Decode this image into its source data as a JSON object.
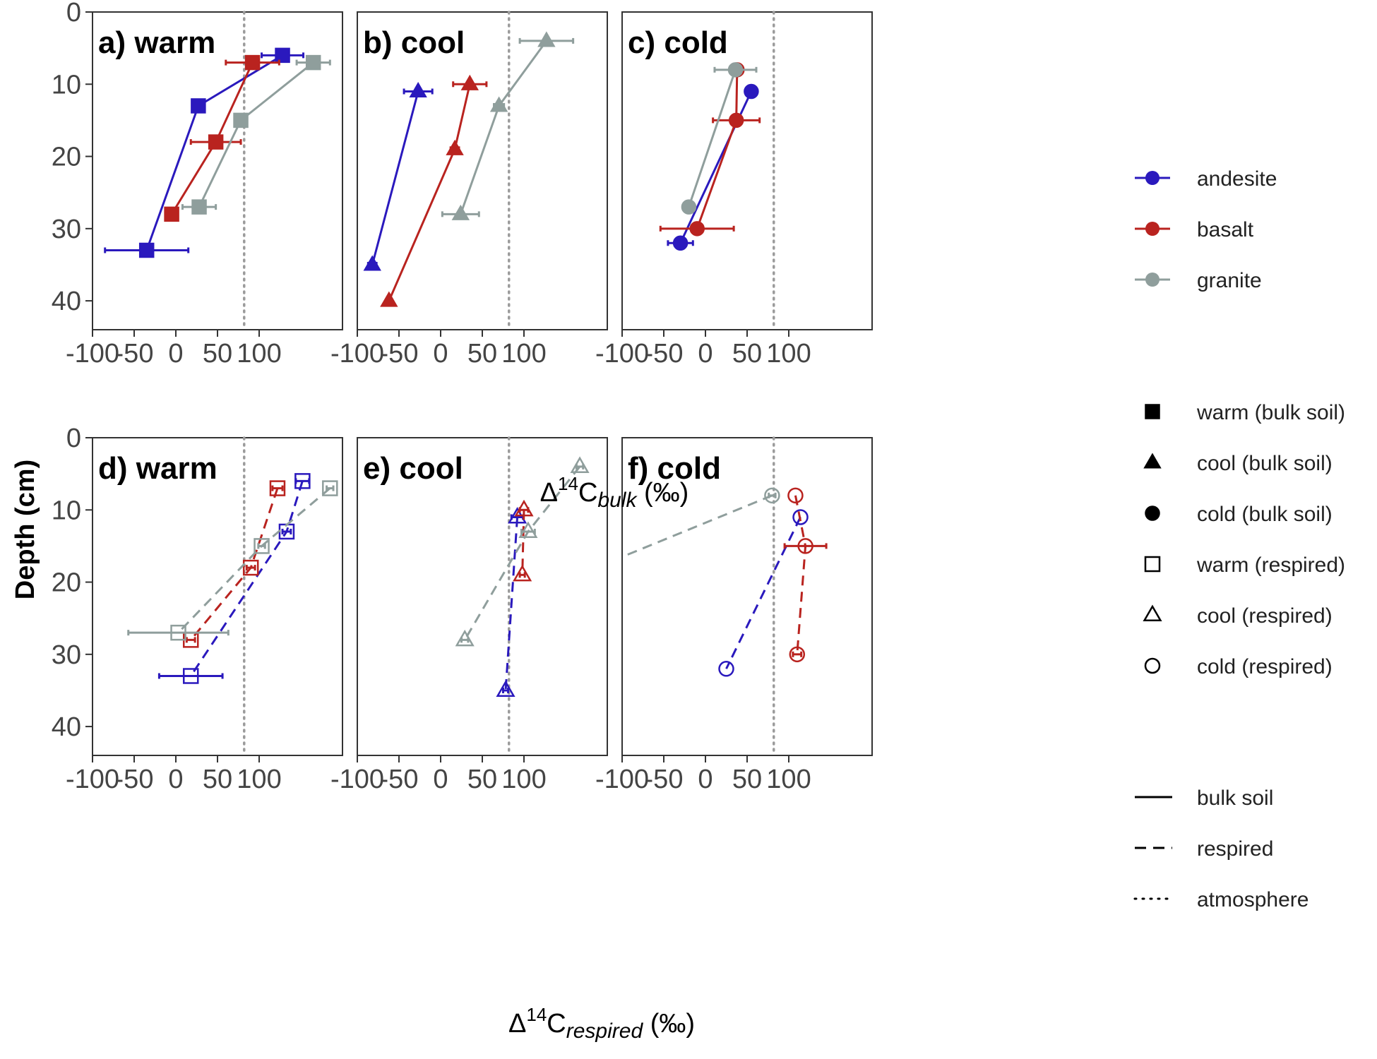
{
  "figure": {
    "y_axis_title": "Depth (cm)",
    "x_axis_title_top": {
      "prefix": "Δ",
      "sup": "14",
      "base": "C",
      "sub": "bulk",
      "suffix": " (‰)"
    },
    "x_axis_title_bottom": {
      "prefix": "Δ",
      "sup": "14",
      "base": "C",
      "sub": "respired",
      "suffix": " (‰)"
    },
    "x_ticks": [
      -100,
      -50,
      0,
      50,
      100
    ],
    "y_ticks": [
      0,
      10,
      20,
      30,
      40
    ],
    "atmosphere_x": 82
  },
  "colors": {
    "andesite": "#2a19bd",
    "basalt": "#b9231f",
    "granite": "#8f9e9c",
    "atmosphere": "#9b9b9b"
  },
  "legend": {
    "parent_material": [
      {
        "label": "andesite",
        "key": "andesite"
      },
      {
        "label": "basalt",
        "key": "basalt"
      },
      {
        "label": "granite",
        "key": "granite"
      }
    ],
    "climate_fraction": [
      {
        "label": "warm (bulk soil)",
        "shape": "square",
        "filled": true
      },
      {
        "label": "cool (bulk soil)",
        "shape": "triangle",
        "filled": true
      },
      {
        "label": "cold (bulk soil)",
        "shape": "circle",
        "filled": true
      },
      {
        "label": "warm (respired)",
        "shape": "square",
        "filled": false
      },
      {
        "label": "cool (respired)",
        "shape": "triangle",
        "filled": false
      },
      {
        "label": "cold (respired)",
        "shape": "circle",
        "filled": false
      }
    ],
    "line_types": [
      {
        "label": "bulk soil",
        "dash": "solid"
      },
      {
        "label": "respired",
        "dash": "dashed"
      },
      {
        "label": "atmosphere",
        "dash": "dotted"
      }
    ]
  },
  "chart_data": [
    {
      "type": "scatter",
      "panel": "a",
      "title": "a) warm",
      "fraction": "bulk",
      "shape": "square",
      "xlim": [
        -100,
        200
      ],
      "ylim": [
        0,
        44
      ],
      "series": [
        {
          "name": "andesite",
          "points": [
            {
              "x": 128,
              "y": 6,
              "err": 25
            },
            {
              "x": 27,
              "y": 13,
              "err": 6
            },
            {
              "x": -35,
              "y": 33,
              "err": 50
            }
          ]
        },
        {
          "name": "basalt",
          "points": [
            {
              "x": 92,
              "y": 7,
              "err": 32
            },
            {
              "x": 48,
              "y": 18,
              "err": 30
            },
            {
              "x": -5,
              "y": 28,
              "err": 3
            }
          ]
        },
        {
          "name": "granite",
          "points": [
            {
              "x": 165,
              "y": 7,
              "err": 20
            },
            {
              "x": 78,
              "y": 15,
              "err": 4
            },
            {
              "x": 28,
              "y": 27,
              "err": 20
            }
          ]
        }
      ]
    },
    {
      "type": "scatter",
      "panel": "b",
      "title": "b) cool",
      "fraction": "bulk",
      "shape": "triangle",
      "xlim": [
        -100,
        200
      ],
      "ylim": [
        0,
        44
      ],
      "series": [
        {
          "name": "andesite",
          "points": [
            {
              "x": -27,
              "y": 11,
              "err": 17
            },
            {
              "x": -82,
              "y": 35,
              "err": 5
            }
          ]
        },
        {
          "name": "basalt",
          "points": [
            {
              "x": 35,
              "y": 10,
              "err": 20
            },
            {
              "x": 17,
              "y": 19,
              "err": 5
            },
            {
              "x": -62,
              "y": 40,
              "err": 2
            }
          ]
        },
        {
          "name": "granite",
          "points": [
            {
              "x": 127,
              "y": 4,
              "err": 32
            },
            {
              "x": 70,
              "y": 13,
              "err": 6
            },
            {
              "x": 24,
              "y": 28,
              "err": 22
            }
          ]
        }
      ]
    },
    {
      "type": "scatter",
      "panel": "c",
      "title": "c) cold",
      "fraction": "bulk",
      "shape": "circle",
      "xlim": [
        -100,
        200
      ],
      "ylim": [
        0,
        44
      ],
      "series": [
        {
          "name": "andesite",
          "points": [
            {
              "x": 55,
              "y": 11,
              "err": 0
            },
            {
              "x": -30,
              "y": 32,
              "err": 15
            }
          ]
        },
        {
          "name": "basalt",
          "points": [
            {
              "x": 38,
              "y": 8,
              "err": 0
            },
            {
              "x": 37,
              "y": 15,
              "err": 28
            },
            {
              "x": -10,
              "y": 30,
              "err": 44
            }
          ]
        },
        {
          "name": "granite",
          "points": [
            {
              "x": 36,
              "y": 8,
              "err": 25
            },
            {
              "x": -20,
              "y": 27,
              "err": 2
            }
          ]
        }
      ]
    },
    {
      "type": "scatter",
      "panel": "d",
      "title": "d) warm",
      "fraction": "respired",
      "shape": "square",
      "xlim": [
        -100,
        200
      ],
      "ylim": [
        0,
        44
      ],
      "series": [
        {
          "name": "andesite",
          "points": [
            {
              "x": 152,
              "y": 6,
              "err": 8
            },
            {
              "x": 133,
              "y": 13,
              "err": 5
            },
            {
              "x": 18,
              "y": 33,
              "err": 38
            }
          ]
        },
        {
          "name": "basalt",
          "points": [
            {
              "x": 122,
              "y": 7,
              "err": 6
            },
            {
              "x": 90,
              "y": 18,
              "err": 5
            },
            {
              "x": 18,
              "y": 28,
              "err": 5
            }
          ]
        },
        {
          "name": "granite",
          "points": [
            {
              "x": 185,
              "y": 7,
              "err": 4
            },
            {
              "x": 103,
              "y": 15,
              "err": 4
            },
            {
              "x": 3,
              "y": 27,
              "err": 60
            }
          ]
        }
      ]
    },
    {
      "type": "scatter",
      "panel": "e",
      "title": "e) cool",
      "fraction": "respired",
      "shape": "triangle",
      "xlim": [
        -100,
        200
      ],
      "ylim": [
        0,
        44
      ],
      "series": [
        {
          "name": "andesite",
          "points": [
            {
              "x": 92,
              "y": 11,
              "err": 7
            },
            {
              "x": 78,
              "y": 35,
              "err": 3
            }
          ]
        },
        {
          "name": "basalt",
          "points": [
            {
              "x": 100,
              "y": 10,
              "err": 5
            },
            {
              "x": 98,
              "y": 19,
              "err": 3
            }
          ]
        },
        {
          "name": "granite",
          "points": [
            {
              "x": 167,
              "y": 4,
              "err": 4
            },
            {
              "x": 105,
              "y": 13,
              "err": 8
            },
            {
              "x": 29,
              "y": 28,
              "err": 4
            }
          ]
        }
      ]
    },
    {
      "type": "scatter",
      "panel": "f",
      "title": "f) cold",
      "fraction": "respired",
      "shape": "circle",
      "xlim": [
        -100,
        200
      ],
      "ylim": [
        0,
        44
      ],
      "series": [
        {
          "name": "andesite",
          "points": [
            {
              "x": 114,
              "y": 11,
              "err": 0
            },
            {
              "x": 25,
              "y": 32,
              "err": 0
            }
          ]
        },
        {
          "name": "basalt",
          "points": [
            {
              "x": 108,
              "y": 8,
              "err": 0
            },
            {
              "x": 120,
              "y": 15,
              "err": 25
            },
            {
              "x": 110,
              "y": 30,
              "err": 5
            }
          ]
        },
        {
          "name": "granite",
          "points": [
            {
              "x": 80,
              "y": 8,
              "err": 4
            },
            {
              "x": -100,
              "y": 16.5,
              "err": 0
            }
          ]
        }
      ]
    }
  ]
}
